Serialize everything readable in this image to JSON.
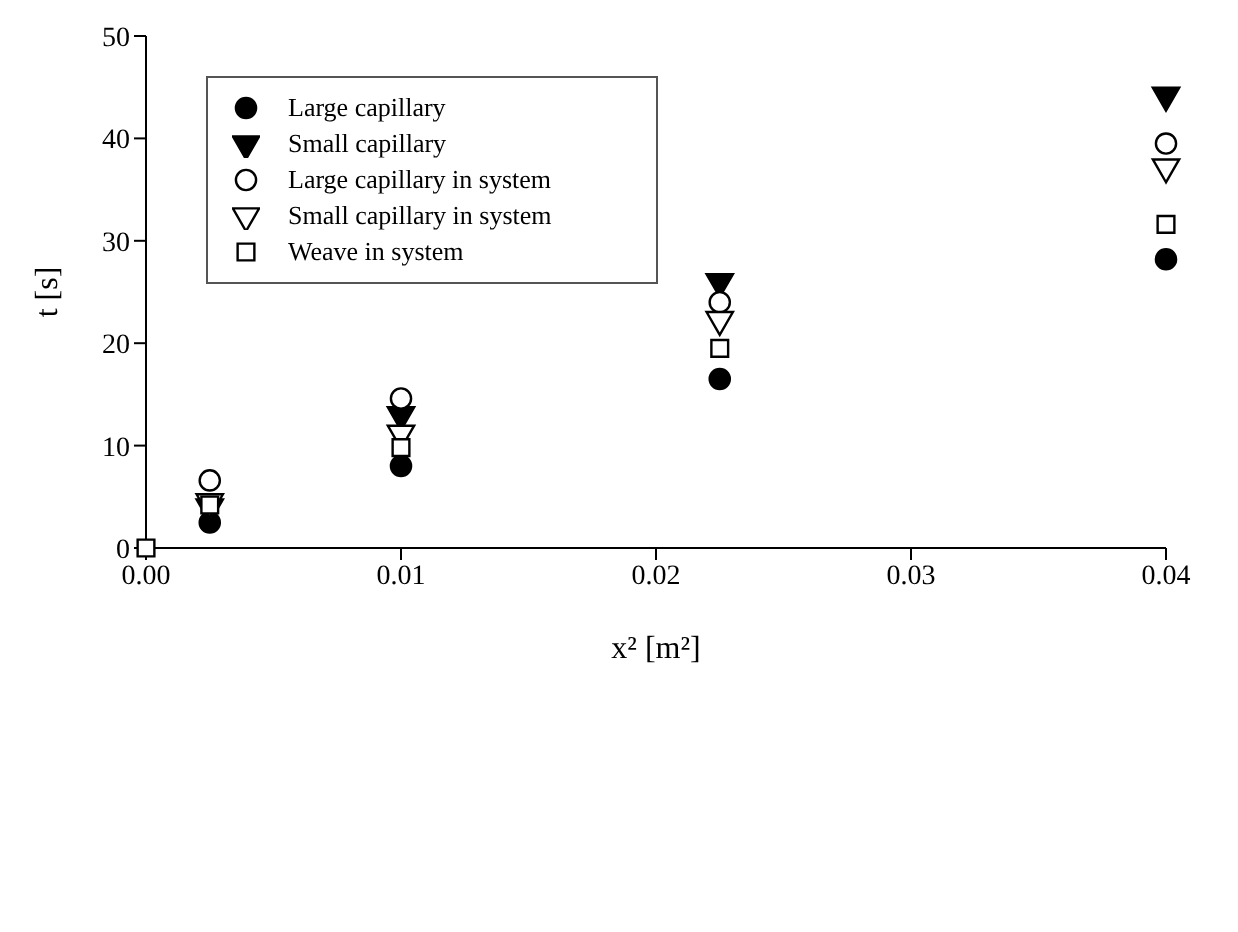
{
  "chart_data": {
    "type": "scatter",
    "xlabel": "x²   [m²]",
    "ylabel": "t    [s]",
    "x": [
      0,
      0.0025,
      0.01,
      0.0225,
      0.04
    ],
    "series": [
      {
        "name": "Large capillary",
        "color": "#000000",
        "marker": "circle",
        "values": [
          null,
          2.5,
          8,
          16.5,
          28.2
        ]
      },
      {
        "name": "Small capillary",
        "color": "#000000",
        "marker": "triangle",
        "values": [
          null,
          4,
          13,
          26,
          44.2
        ]
      },
      {
        "name": "Large capillary in system",
        "color": "#ffffff",
        "marker": "circle",
        "values": [
          null,
          6.6,
          14.6,
          24,
          39.5
        ]
      },
      {
        "name": "Small capillary in system",
        "color": "#ffffff",
        "marker": "triangle",
        "values": [
          null,
          4.5,
          11.2,
          22.3,
          37.2
        ]
      },
      {
        "name": "Weave in system",
        "color": "#ffffff",
        "marker": "square",
        "values": [
          0,
          4.2,
          9.8,
          19.5,
          31.6
        ]
      }
    ],
    "xlim": [
      0,
      0.04
    ],
    "xticks": [
      {
        "value": 0,
        "label": "0.00"
      },
      {
        "value": 0.01,
        "label": "0.01"
      },
      {
        "value": 0.02,
        "label": "0.02"
      },
      {
        "value": 0.03,
        "label": "0.03"
      },
      {
        "value": 0.04,
        "label": "0.04"
      }
    ],
    "ylim": [
      0,
      50
    ],
    "yticks": [
      0,
      10,
      20,
      30,
      40,
      50
    ],
    "legend": "top left"
  }
}
